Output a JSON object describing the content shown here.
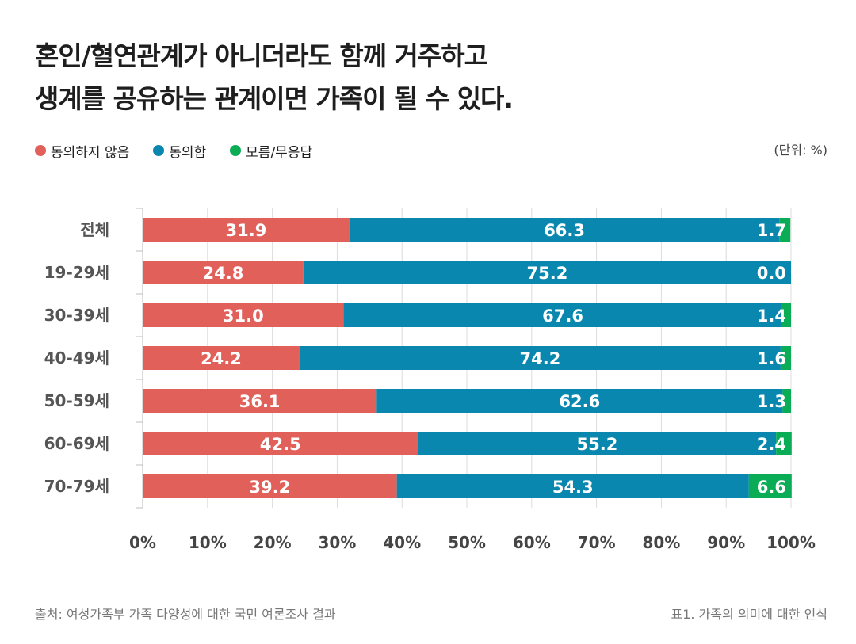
{
  "title_lines": [
    "혼인/혈연관계가 아니더라도 함께 거주하고",
    "생계를 공유하는 관계이면 가족이 될 수 있다."
  ],
  "legend": [
    {
      "label": "동의하지 않음",
      "color": "#e2605a"
    },
    {
      "label": "동의함",
      "color": "#0a87ae"
    },
    {
      "label": "모름/무응답",
      "color": "#0aad55"
    }
  ],
  "unit": "(단위: %)",
  "footer": {
    "source": "출처: 여성가족부 가족 다양성에 대한 국민 여론조사 결과",
    "caption": "표1. 가족의 의미에 대한 인식"
  },
  "chart_data": {
    "type": "bar",
    "orientation": "horizontal",
    "stacked": true,
    "percent_stacked": true,
    "categories": [
      "전체",
      "19-29세",
      "30-39세",
      "40-49세",
      "50-59세",
      "60-69세",
      "70-79세"
    ],
    "series": [
      {
        "name": "동의하지 않음",
        "color": "#e2605a",
        "values": [
          31.9,
          24.8,
          31.0,
          24.2,
          36.1,
          42.5,
          39.2
        ]
      },
      {
        "name": "동의함",
        "color": "#0a87ae",
        "values": [
          66.3,
          75.2,
          67.6,
          74.2,
          62.6,
          55.2,
          54.3
        ]
      },
      {
        "name": "모름/무응답",
        "color": "#0aad55",
        "values": [
          1.7,
          0.0,
          1.4,
          1.6,
          1.3,
          2.4,
          6.6
        ]
      }
    ],
    "value_labels": [
      [
        "31.9",
        "24.8",
        "31.0",
        "24.2",
        "36.1",
        "42.5",
        "39.2"
      ],
      [
        "66.3",
        "75.2",
        "67.6",
        "74.2",
        "62.6",
        "55.2",
        "54.3"
      ],
      [
        "1.7",
        "0.0",
        "1.4",
        "1.6",
        "1.3",
        "2.4",
        "6.6"
      ]
    ],
    "xlim": [
      0,
      100
    ],
    "xticks": [
      "0%",
      "10%",
      "20%",
      "30%",
      "40%",
      "50%",
      "60%",
      "70%",
      "80%",
      "90%",
      "100%"
    ],
    "grid": true,
    "legend_position": "top-left"
  }
}
